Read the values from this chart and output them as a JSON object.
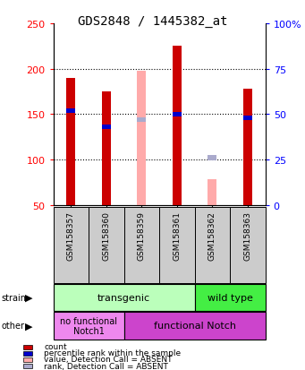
{
  "title": "GDS2848 / 1445382_at",
  "samples": [
    "GSM158357",
    "GSM158360",
    "GSM158359",
    "GSM158361",
    "GSM158362",
    "GSM158363"
  ],
  "count_values": [
    190,
    175,
    null,
    225,
    null,
    178
  ],
  "count_absent_values": [
    null,
    null,
    198,
    null,
    78,
    null
  ],
  "rank_pct_values": [
    52,
    43,
    null,
    50,
    null,
    48
  ],
  "rank_pct_absent": [
    null,
    null,
    47,
    null,
    26,
    null
  ],
  "ylim_left": [
    50,
    250
  ],
  "ylim_right": [
    0,
    100
  ],
  "left_ticks": [
    50,
    100,
    150,
    200,
    250
  ],
  "right_ticks": [
    0,
    25,
    50,
    75,
    100
  ],
  "right_tick_labels": [
    "0",
    "25",
    "50",
    "75",
    "100%"
  ],
  "count_color": "#cc0000",
  "count_absent_color": "#ffaaaa",
  "rank_color": "#0000cc",
  "rank_absent_color": "#aaaacc",
  "strain_transgenic_label": "transgenic",
  "strain_wildtype_label": "wild type",
  "other_nofunc_label": "no functional\nNotch1",
  "other_func_label": "functional Notch",
  "strain_color_light": "#bbffbb",
  "strain_color_dark": "#44ee44",
  "other_nofunc_color": "#ee88ee",
  "other_func_color": "#cc44cc",
  "title_fontsize": 10,
  "bar_width": 0.25
}
